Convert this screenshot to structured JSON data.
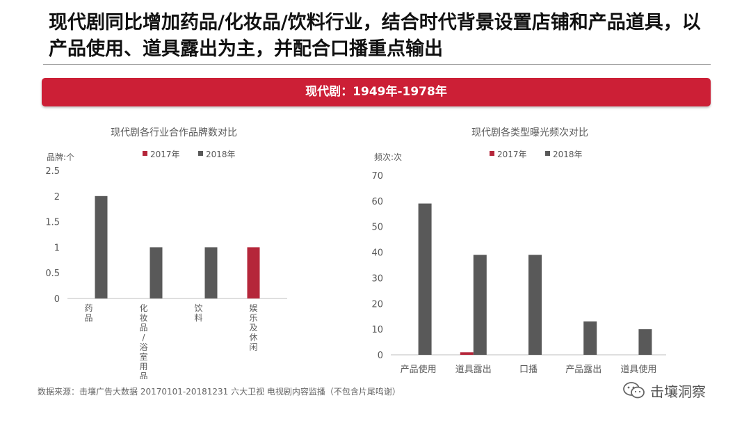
{
  "header": {
    "title": "现代剧同比增加药品/化妆品/饮料行业，结合时代背景设置店铺和产品道具，以产品使用、道具露出为主，并配合口播重点输出",
    "banner": "现代剧：1949年-1978年"
  },
  "colors": {
    "accent": "#cc1f36",
    "series_2017": "#b5263a",
    "series_2018": "#595959"
  },
  "chart_data": [
    {
      "type": "bar",
      "title": "现代剧各行业合作品牌数对比",
      "ylabel": "品牌:个",
      "xlabel": "",
      "categories": [
        "药品",
        "化妆品/浴室用品",
        "饮料",
        "娱乐及休闲"
      ],
      "series": [
        {
          "name": "2017年",
          "values": [
            0,
            0,
            0,
            1
          ]
        },
        {
          "name": "2018年",
          "values": [
            2,
            1,
            1,
            0
          ]
        }
      ],
      "ylim": [
        0,
        2.5
      ],
      "yticks": [
        "0",
        "0.5",
        "1",
        "1.5",
        "2",
        "2.5"
      ],
      "legend": "top",
      "grid": false
    },
    {
      "type": "bar",
      "title": "现代剧各类型曝光频次对比",
      "ylabel": "频次:次",
      "xlabel": "",
      "categories": [
        "产品使用",
        "道具露出",
        "口播",
        "产品露出",
        "道具使用"
      ],
      "series": [
        {
          "name": "2017年",
          "values": [
            0,
            1,
            0,
            0,
            0
          ]
        },
        {
          "name": "2018年",
          "values": [
            59,
            39,
            39,
            13,
            10
          ]
        }
      ],
      "ylim": [
        0,
        70
      ],
      "yticks": [
        "0",
        "10",
        "20",
        "30",
        "40",
        "50",
        "60",
        "70"
      ],
      "legend": "top",
      "grid": false
    }
  ],
  "footer": {
    "source": "数据来源：击壤广告大数据 20170101-20181231 六大卫视 电视剧内容监播（不包含片尾鸣谢）",
    "watermark_icon": "wechat-icon",
    "watermark": "击壤洞察"
  }
}
